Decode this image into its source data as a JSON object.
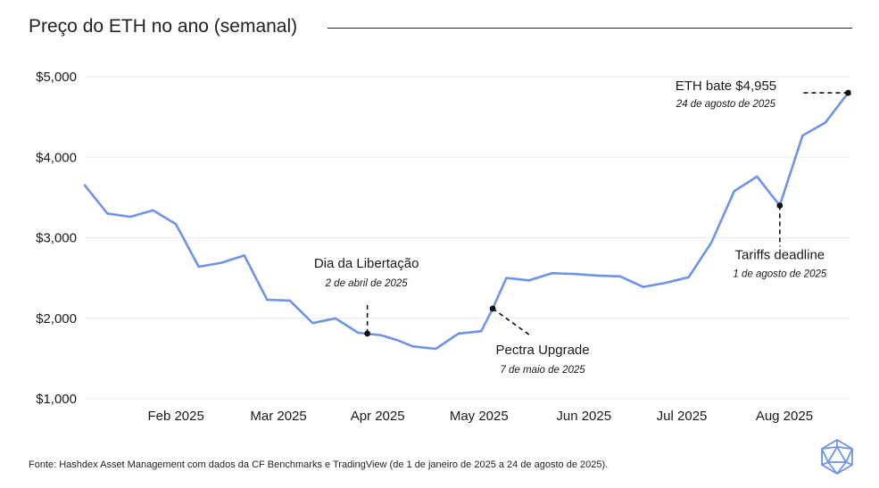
{
  "chart_data": {
    "type": "line",
    "title": "Preço do ETH no ano (semanal)",
    "xlabel": "",
    "ylabel": "",
    "ylim": [
      1000,
      5000
    ],
    "xlim": [
      0,
      33.6
    ],
    "grid": true,
    "legend": "none",
    "line_color": "#6f93e9",
    "y_ticks": [
      {
        "value": 1000,
        "label": "$1,000"
      },
      {
        "value": 2000,
        "label": "$2,000"
      },
      {
        "value": 3000,
        "label": "$3,000"
      },
      {
        "value": 4000,
        "label": "$4,000"
      },
      {
        "value": 5000,
        "label": "$5,000"
      }
    ],
    "x_ticks": [
      {
        "value": 4,
        "label": "Feb 2025"
      },
      {
        "value": 8.5,
        "label": "Mar 2025"
      },
      {
        "value": 12.85,
        "label": "Apr 2025"
      },
      {
        "value": 17.3,
        "label": "May 2025"
      },
      {
        "value": 21.9,
        "label": "Jun 2025"
      },
      {
        "value": 26.2,
        "label": "Jul 2025"
      },
      {
        "value": 30.7,
        "label": "Aug 2025"
      }
    ],
    "series": [
      {
        "x": [
          0,
          1,
          2,
          3,
          4,
          5,
          6,
          7,
          8,
          9,
          10,
          11,
          12,
          13,
          13.7,
          14.4,
          15.4,
          16.4,
          17.4,
          17.9,
          18.5,
          19.5,
          20.5,
          21.5,
          22.5,
          23.5,
          24.5,
          25.5,
          26.5,
          27.5,
          28.5,
          29.5,
          30.5,
          31.5,
          32.5,
          33.5
        ],
        "values": [
          3650,
          3300,
          3260,
          3340,
          3170,
          2640,
          2690,
          2780,
          2230,
          2220,
          1940,
          2000,
          1820,
          1790,
          1730,
          1650,
          1620,
          1810,
          1840,
          2120,
          2500,
          2470,
          2560,
          2550,
          2530,
          2520,
          2390,
          2440,
          2510,
          2940,
          3580,
          3760,
          3400,
          4270,
          4430,
          4800
        ]
      }
    ],
    "annotations": [
      {
        "title": "Dia da Libertação",
        "date": "2 de abril de 2025",
        "x": 12.4,
        "y": 1810
      },
      {
        "title": "Pectra Upgrade",
        "date": "7 de maio de 2025",
        "x": 17.9,
        "y": 2120
      },
      {
        "title": "Tariffs deadline",
        "date": "1 de agosto de 2025",
        "x": 30.5,
        "y": 3400
      },
      {
        "title": "ETH bate $4,955",
        "date": "24 de agosto de 2025",
        "x": 33.5,
        "y": 4800
      }
    ]
  },
  "footer": {
    "source": "Fonte: Hashdex Asset Management com dados da CF Benchmarks e TradingView (de 1 de janeiro de 2025 a 24 de agosto de 2025)."
  },
  "logo": {
    "icon": "hashdex-polyhedron-icon",
    "color": "#6f93e9"
  }
}
